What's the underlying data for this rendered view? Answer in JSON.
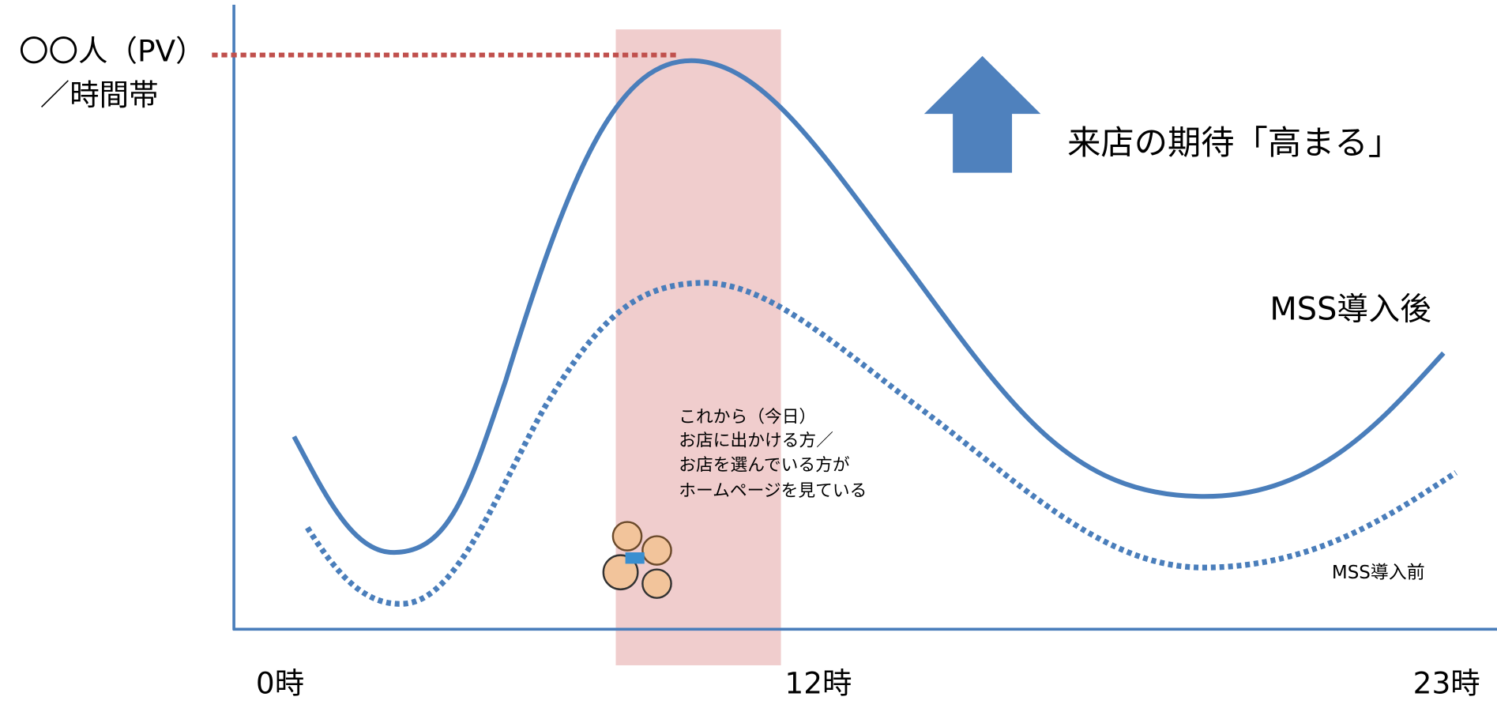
{
  "axis": {
    "y_label_line1": "〇〇人（PV）",
    "y_label_line2": "／時間帯",
    "x_ticks": [
      "0時",
      "12時",
      "23時"
    ]
  },
  "callout": "来店の期待「高まる」",
  "series": {
    "after": "MSS導入後",
    "before": "MSS導入前"
  },
  "note": [
    "これから（今日）",
    "お店に出かける方／",
    "お店を選んでいる方が",
    "ホームページを見ている"
  ]
}
